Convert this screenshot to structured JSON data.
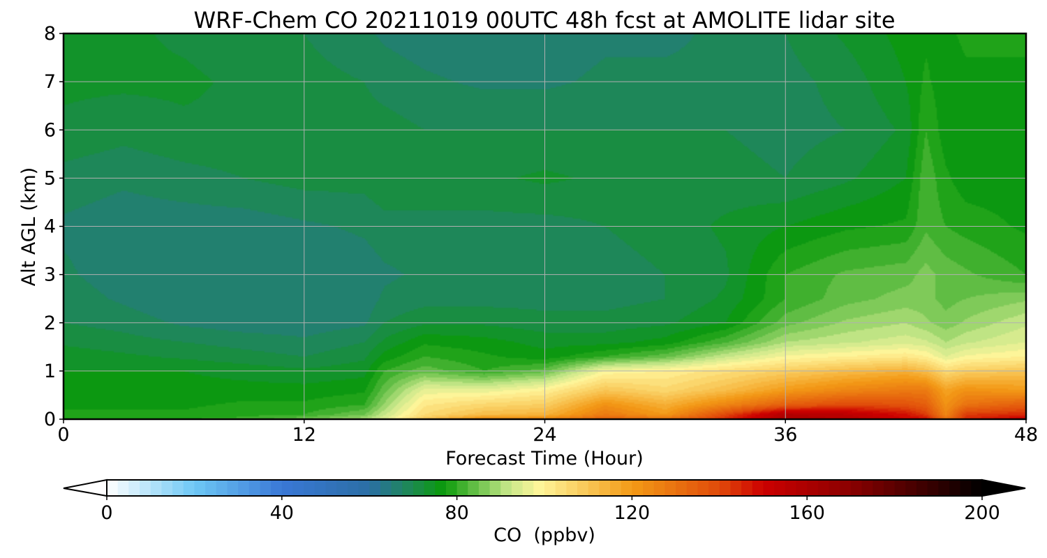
{
  "chart_data": {
    "type": "heatmap",
    "title": "WRF-Chem CO  20211019 00UTC 48h fcst at AMOLITE lidar site",
    "xlabel": "Forecast Time (Hour)",
    "ylabel": "Alt AGL (km)",
    "xlim": [
      0,
      48
    ],
    "ylim": [
      0,
      8
    ],
    "x_ticks": [
      0,
      12,
      24,
      36,
      48
    ],
    "x_tick_labels": [
      "0",
      "12",
      "24",
      "36",
      "48"
    ],
    "y_ticks": [
      0,
      1,
      2,
      3,
      4,
      5,
      6,
      7,
      8
    ],
    "y_tick_labels": [
      "0",
      "1",
      "2",
      "3",
      "4",
      "5",
      "6",
      "7",
      "8"
    ],
    "grid": true,
    "colorbar": {
      "label": "CO  (ppbv)",
      "range": [
        0,
        200
      ],
      "ticks": [
        0,
        40,
        80,
        120,
        160,
        200
      ],
      "tick_labels": [
        "0",
        "40",
        "80",
        "120",
        "160",
        "200"
      ],
      "extend": "both",
      "orientation": "horizontal",
      "placement": "bottom",
      "color_stops": [
        {
          "value": 0,
          "color": "#ffffff"
        },
        {
          "value": 20,
          "color": "#6ec8f5"
        },
        {
          "value": 40,
          "color": "#3a78d6"
        },
        {
          "value": 60,
          "color": "#2b6ea5"
        },
        {
          "value": 70,
          "color": "#1c8a4e"
        },
        {
          "value": 77,
          "color": "#0a9a0a"
        },
        {
          "value": 92,
          "color": "#c8e88a"
        },
        {
          "value": 99,
          "color": "#fff59a"
        },
        {
          "value": 120,
          "color": "#f39a16"
        },
        {
          "value": 140,
          "color": "#e04a0a"
        },
        {
          "value": 150,
          "color": "#cc0000"
        },
        {
          "value": 170,
          "color": "#8a0000"
        },
        {
          "value": 200,
          "color": "#000000"
        }
      ]
    },
    "hours": [
      0,
      3,
      6,
      9,
      12,
      15,
      16,
      18,
      21,
      24,
      27,
      30,
      33,
      36,
      39,
      42,
      43,
      44,
      45,
      48
    ],
    "altitudes_km": [
      0,
      0.1,
      0.3,
      0.6,
      1.0,
      1.3,
      1.6,
      2.0,
      2.5,
      3.0,
      4.0,
      5.0,
      6.0,
      7.0,
      8.0
    ],
    "co_ppbv": [
      [
        80,
        80,
        80,
        81,
        85,
        90,
        95,
        110,
        125,
        125,
        135,
        130,
        145,
        160,
        158,
        150,
        150,
        130,
        145,
        152
      ],
      [
        78,
        78,
        78,
        79,
        80,
        85,
        92,
        105,
        112,
        114,
        128,
        120,
        140,
        158,
        155,
        148,
        142,
        125,
        142,
        145
      ],
      [
        77,
        77,
        77,
        78,
        78,
        80,
        88,
        102,
        106,
        108,
        122,
        115,
        125,
        135,
        140,
        138,
        135,
        122,
        130,
        135
      ],
      [
        76,
        76,
        76,
        76,
        76,
        77,
        84,
        96,
        96,
        100,
        110,
        106,
        112,
        120,
        125,
        128,
        128,
        118,
        122,
        120
      ],
      [
        75,
        75,
        75,
        74,
        73,
        74,
        80,
        84,
        80,
        84,
        98,
        100,
        104,
        108,
        112,
        115,
        112,
        105,
        108,
        110
      ],
      [
        74,
        73,
        72,
        71,
        70,
        72,
        76,
        80,
        78,
        76,
        80,
        84,
        92,
        98,
        100,
        102,
        100,
        95,
        98,
        100
      ],
      [
        72,
        71,
        70,
        69,
        68,
        70,
        73,
        77,
        76,
        74,
        74,
        76,
        82,
        90,
        92,
        94,
        93,
        90,
        92,
        95
      ],
      [
        70,
        69,
        67,
        66,
        66,
        67,
        70,
        72,
        72,
        71,
        71,
        72,
        75,
        84,
        88,
        90,
        88,
        86,
        88,
        92
      ],
      [
        69,
        67,
        65,
        65,
        65,
        66,
        68,
        69,
        69,
        69,
        69,
        70,
        73,
        80,
        84,
        86,
        86,
        84,
        85,
        87
      ],
      [
        68,
        66,
        65,
        65,
        65,
        66,
        67,
        68,
        68,
        68,
        69,
        70,
        72,
        80,
        83,
        84,
        86,
        84,
        83,
        80
      ],
      [
        67,
        66,
        66,
        66,
        67,
        68,
        69,
        69,
        69,
        69,
        70,
        71,
        73,
        75,
        77,
        78,
        82,
        80,
        79,
        77
      ],
      [
        69,
        68,
        69,
        70,
        71,
        71,
        72,
        72,
        72,
        73,
        72,
        72,
        71,
        70,
        72,
        75,
        82,
        78,
        76,
        76
      ],
      [
        72,
        71,
        72,
        72,
        72,
        71,
        71,
        70,
        70,
        70,
        70,
        70,
        70,
        69,
        70,
        73,
        80,
        76,
        76,
        76
      ],
      [
        73,
        73,
        73,
        72,
        71,
        70,
        69,
        68,
        67,
        67,
        68,
        68,
        68,
        69,
        71,
        75,
        78,
        76,
        77,
        77
      ],
      [
        73,
        73,
        72,
        71,
        70,
        68,
        67,
        66,
        65,
        66,
        67,
        67,
        68,
        70,
        73,
        76,
        77,
        77,
        78,
        78
      ]
    ]
  }
}
